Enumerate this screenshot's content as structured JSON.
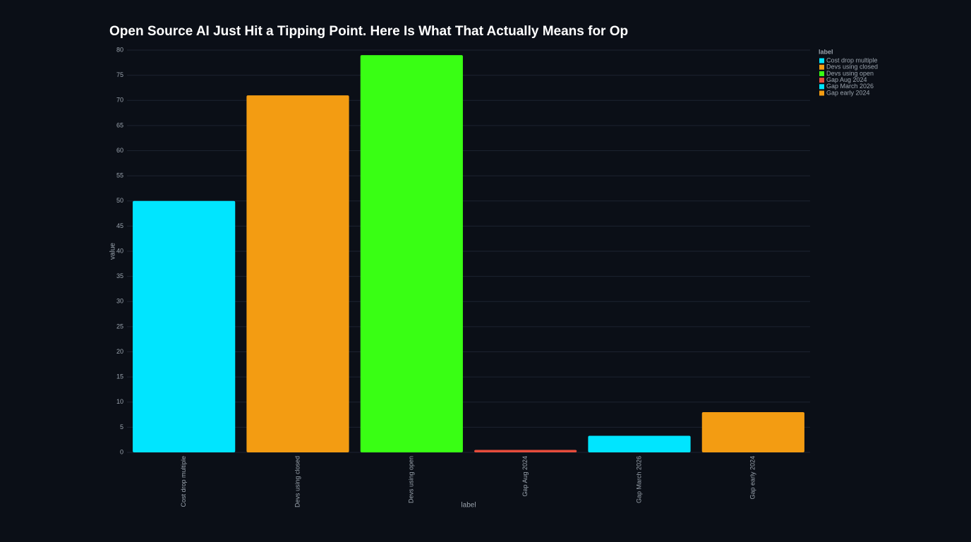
{
  "chart_data": {
    "type": "bar",
    "title": "Open Source AI Just Hit a Tipping Point. Here Is What That Actually Means for Op",
    "x_label": "label",
    "y_label": "value",
    "legend_title": "label",
    "categories": [
      "Cost drop multiple",
      "Devs using closed",
      "Devs using open",
      "Gap Aug 2024",
      "Gap March 2026",
      "Gap early 2024"
    ],
    "values": [
      50,
      71,
      79,
      0.5,
      3.3,
      8
    ],
    "colors": [
      "#00e5ff",
      "#f39c12",
      "#39ff14",
      "#e74c3c",
      "#00e5ff",
      "#f39c12"
    ],
    "ylim": [
      0,
      80
    ],
    "yticks": [
      0,
      5,
      10,
      15,
      20,
      25,
      30,
      35,
      40,
      45,
      50,
      55,
      60,
      65,
      70,
      75,
      80
    ],
    "grid": true,
    "legend": "top-right"
  }
}
